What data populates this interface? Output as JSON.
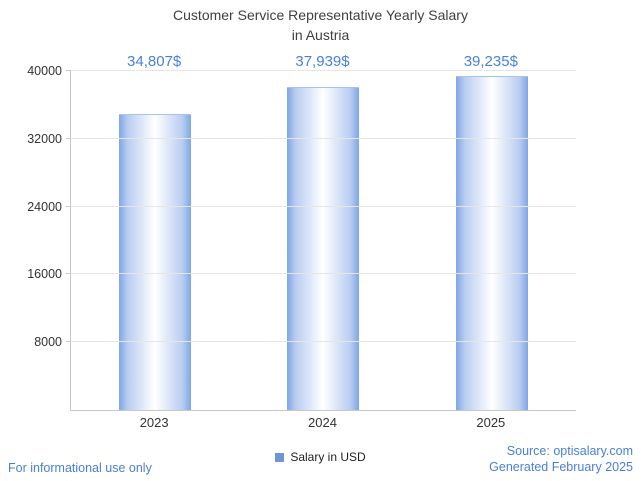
{
  "title": {
    "line1": "Customer Service Representative Yearly Salary",
    "line2": "in Austria"
  },
  "chart_data": {
    "type": "bar",
    "title": "Customer Service Representative Yearly Salary in Austria",
    "categories": [
      "2023",
      "2024",
      "2025"
    ],
    "values": [
      34807,
      37939,
      39235
    ],
    "value_labels": [
      "34,807$",
      "37,939$",
      "39,235$"
    ],
    "xlabel": "",
    "ylabel": "",
    "ylim": [
      0,
      40000
    ],
    "yticks": [
      8000,
      16000,
      24000,
      32000,
      40000
    ],
    "grid": true,
    "legend": [
      "Salary in USD"
    ],
    "legend_position": "bottom",
    "bar_gradient_edge": "#7ea6e6",
    "bar_gradient_center": "#ffffff"
  },
  "legend": {
    "label": "Salary in USD",
    "swatch_color": "#6d96d6"
  },
  "footer": {
    "left": "For informational use only",
    "source": "Source: optisalary.com",
    "generated": "Generated February 2025"
  },
  "colors": {
    "accent_text": "#4a7fd9",
    "title_text": "#3f3f3f",
    "axis_line": "#c8c8c8",
    "gridline": "#e6e6e6"
  }
}
